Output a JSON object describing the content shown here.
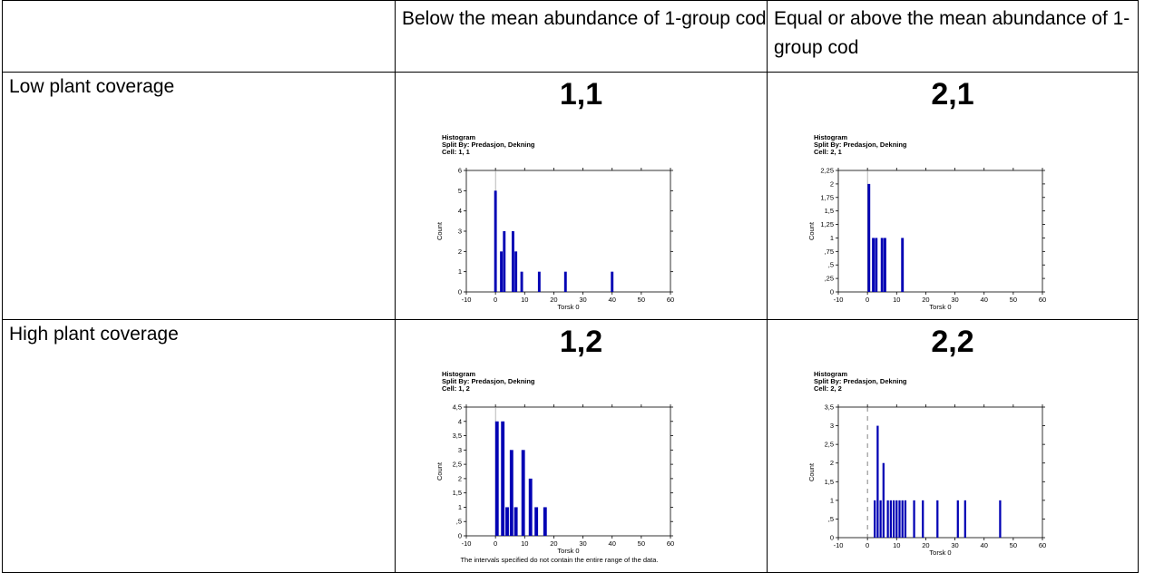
{
  "table": {
    "headers": [
      "",
      "Below the mean abundance of 1-group cod",
      "Equal or above the mean abundance of 1-group cod"
    ],
    "rows": [
      {
        "label": "Low plant coverage"
      },
      {
        "label": "High plant coverage"
      }
    ]
  },
  "bar_color": "#0000b4",
  "chart_data": [
    {
      "type": "bar",
      "cell_label": "1,1",
      "title": "Histogram",
      "subtitle": "Split By: Predasjon, Dekning",
      "cell_caption": "Cell: 1, 1",
      "xlabel": "Torsk 0",
      "ylabel": "Count",
      "xlim": [
        -10,
        60
      ],
      "ylim": [
        0,
        6
      ],
      "x_ticks": [
        -10,
        0,
        10,
        20,
        30,
        40,
        50,
        60
      ],
      "y_tick_labels": [
        "0",
        "1",
        "2",
        "3",
        "4",
        "5",
        "6"
      ],
      "y_ticks": [
        0,
        1,
        2,
        3,
        4,
        5,
        6
      ],
      "bars": [
        {
          "x": 0,
          "value": 5
        },
        {
          "x": 2,
          "value": 2
        },
        {
          "x": 3,
          "value": 3
        },
        {
          "x": 6,
          "value": 3
        },
        {
          "x": 7,
          "value": 2
        },
        {
          "x": 9,
          "value": 1
        },
        {
          "x": 15,
          "value": 1
        },
        {
          "x": 24,
          "value": 1
        },
        {
          "x": 40,
          "value": 1
        }
      ],
      "bar_width": 0.9,
      "dashed_zero": false,
      "footnote": ""
    },
    {
      "type": "bar",
      "cell_label": "2,1",
      "title": "Histogram",
      "subtitle": "Split By: Predasjon, Dekning",
      "cell_caption": "Cell: 2, 1",
      "xlabel": "Torsk 0",
      "ylabel": "Count",
      "xlim": [
        -10,
        60
      ],
      "ylim": [
        0,
        2.25
      ],
      "x_ticks": [
        -10,
        0,
        10,
        20,
        30,
        40,
        50,
        60
      ],
      "y_ticks": [
        0,
        0.25,
        0.5,
        0.75,
        1,
        1.25,
        1.5,
        1.75,
        2,
        2.25
      ],
      "y_tick_labels": [
        "0",
        ",25",
        ",5",
        ",75",
        "1",
        "1,25",
        "1,5",
        "1,75",
        "2",
        "2,25"
      ],
      "bars": [
        {
          "x": 0.5,
          "value": 2
        },
        {
          "x": 2,
          "value": 1
        },
        {
          "x": 3,
          "value": 1
        },
        {
          "x": 5,
          "value": 1
        },
        {
          "x": 6,
          "value": 1
        },
        {
          "x": 12,
          "value": 1
        }
      ],
      "bar_width": 0.9,
      "dashed_zero": false,
      "footnote": ""
    },
    {
      "type": "bar",
      "cell_label": "1,2",
      "title": "Histogram",
      "subtitle": "Split By: Predasjon, Dekning",
      "cell_caption": "Cell: 1, 2",
      "xlabel": "Torsk 0",
      "ylabel": "Count",
      "xlim": [
        -10,
        60
      ],
      "ylim": [
        0,
        4.5
      ],
      "x_ticks": [
        -10,
        0,
        10,
        20,
        30,
        40,
        50,
        60
      ],
      "y_ticks": [
        0,
        0.5,
        1,
        1.5,
        2,
        2.5,
        3,
        3.5,
        4,
        4.5
      ],
      "y_tick_labels": [
        "0",
        ",5",
        "1",
        "1,5",
        "2",
        "2,5",
        "3",
        "3,5",
        "4",
        "4,5"
      ],
      "bars": [
        {
          "x": 0.5,
          "value": 4
        },
        {
          "x": 2.5,
          "value": 4
        },
        {
          "x": 4,
          "value": 1
        },
        {
          "x": 5.5,
          "value": 3
        },
        {
          "x": 7,
          "value": 1
        },
        {
          "x": 9.5,
          "value": 3
        },
        {
          "x": 12,
          "value": 2
        },
        {
          "x": 14,
          "value": 1
        },
        {
          "x": 17,
          "value": 1
        }
      ],
      "bar_width": 1.2,
      "dashed_zero": false,
      "footnote": "The intervals specified do not contain the entire range of the data."
    },
    {
      "type": "bar",
      "cell_label": "2,2",
      "title": "Histogram",
      "subtitle": "Split By: Predasjon, Dekning",
      "cell_caption": "Cell: 2, 2",
      "xlabel": "Torsk 0",
      "ylabel": "Count",
      "xlim": [
        -10,
        60
      ],
      "ylim": [
        0,
        3.5
      ],
      "x_ticks": [
        -10,
        0,
        10,
        20,
        30,
        40,
        50,
        60
      ],
      "y_ticks": [
        0,
        0.5,
        1,
        1.5,
        2,
        2.5,
        3,
        3.5
      ],
      "y_tick_labels": [
        "0",
        ",5",
        "1",
        "1,5",
        "2",
        "2,5",
        "3",
        "3,5"
      ],
      "bars": [
        {
          "x": 2.5,
          "value": 1
        },
        {
          "x": 3.5,
          "value": 3
        },
        {
          "x": 4.5,
          "value": 1
        },
        {
          "x": 5.5,
          "value": 2
        },
        {
          "x": 7,
          "value": 1
        },
        {
          "x": 8,
          "value": 1
        },
        {
          "x": 9,
          "value": 1
        },
        {
          "x": 10,
          "value": 1
        },
        {
          "x": 11,
          "value": 1
        },
        {
          "x": 12,
          "value": 1
        },
        {
          "x": 13,
          "value": 1
        },
        {
          "x": 16,
          "value": 1
        },
        {
          "x": 19,
          "value": 1
        },
        {
          "x": 24,
          "value": 1
        },
        {
          "x": 31,
          "value": 1
        },
        {
          "x": 33.5,
          "value": 1
        },
        {
          "x": 45.5,
          "value": 1
        }
      ],
      "bar_width": 0.7,
      "dashed_zero": true,
      "footnote": ""
    }
  ]
}
